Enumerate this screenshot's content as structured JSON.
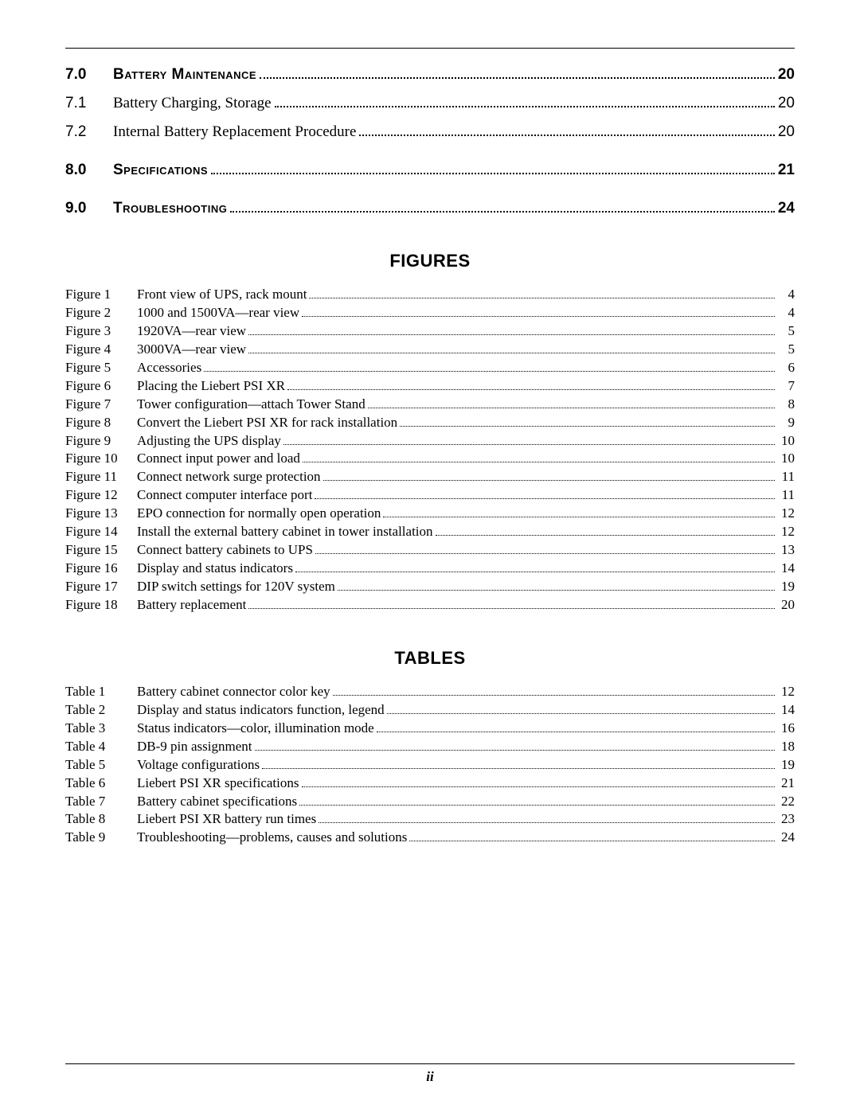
{
  "toc": [
    {
      "num": "7.0",
      "title": "Battery Maintenance",
      "page": "20",
      "bold": true,
      "top_gap": false
    },
    {
      "num": "7.1",
      "title": "Battery Charging, Storage",
      "page": "20",
      "bold": false,
      "top_gap": false
    },
    {
      "num": "7.2",
      "title": "Internal Battery Replacement Procedure",
      "page": "20",
      "bold": false,
      "top_gap": false
    },
    {
      "num": "8.0",
      "title": "Specifications",
      "page": "21",
      "bold": true,
      "top_gap": true
    },
    {
      "num": "9.0",
      "title": "Troubleshooting",
      "page": "24",
      "bold": true,
      "top_gap": true
    }
  ],
  "figures_header": "Figures",
  "figures": [
    {
      "label": "Figure 1",
      "title": "Front view of UPS, rack mount",
      "page": "4"
    },
    {
      "label": "Figure 2",
      "title": "1000 and 1500VA—rear view",
      "page": "4"
    },
    {
      "label": "Figure 3",
      "title": "1920VA—rear view",
      "page": "5"
    },
    {
      "label": "Figure 4",
      "title": "3000VA—rear view",
      "page": "5"
    },
    {
      "label": "Figure 5",
      "title": "Accessories",
      "page": "6"
    },
    {
      "label": "Figure 6",
      "title": "Placing the Liebert PSI XR",
      "page": "7"
    },
    {
      "label": "Figure 7",
      "title": "Tower configuration—attach Tower Stand",
      "page": "8"
    },
    {
      "label": "Figure 8",
      "title": "Convert the Liebert PSI XR for rack installation",
      "page": "9"
    },
    {
      "label": "Figure 9",
      "title": "Adjusting the UPS display",
      "page": "10"
    },
    {
      "label": "Figure 10",
      "title": "Connect input power and load",
      "page": "10"
    },
    {
      "label": "Figure 11",
      "title": "Connect network surge protection",
      "page": "11"
    },
    {
      "label": "Figure 12",
      "title": "Connect computer interface port",
      "page": "11"
    },
    {
      "label": "Figure 13",
      "title": "EPO connection for normally open operation",
      "page": "12"
    },
    {
      "label": "Figure 14",
      "title": "Install the external battery cabinet in tower installation",
      "page": "12"
    },
    {
      "label": "Figure 15",
      "title": "Connect battery cabinets to UPS",
      "page": "13"
    },
    {
      "label": "Figure 16",
      "title": "Display and status indicators",
      "page": "14"
    },
    {
      "label": "Figure 17",
      "title": "DIP switch settings for 120V system",
      "page": "19"
    },
    {
      "label": "Figure 18",
      "title": "Battery replacement",
      "page": "20"
    }
  ],
  "tables_header": "Tables",
  "tables": [
    {
      "label": "Table 1",
      "title": "Battery cabinet connector color key",
      "page": "12"
    },
    {
      "label": "Table 2",
      "title": "Display and status indicators function, legend",
      "page": "14"
    },
    {
      "label": "Table 3",
      "title": "Status indicators—color, illumination mode",
      "page": "16"
    },
    {
      "label": "Table 4",
      "title": "DB-9 pin assignment",
      "page": "18"
    },
    {
      "label": "Table 5",
      "title": "Voltage configurations",
      "page": "19"
    },
    {
      "label": "Table 6",
      "title": "Liebert PSI XR specifications",
      "page": "21"
    },
    {
      "label": "Table 7",
      "title": "Battery cabinet specifications",
      "page": "22"
    },
    {
      "label": "Table 8",
      "title": "Liebert PSI XR battery run times",
      "page": "23"
    },
    {
      "label": "Table 9",
      "title": "Troubleshooting—problems, causes and solutions",
      "page": "24"
    }
  ],
  "page_number": "ii"
}
